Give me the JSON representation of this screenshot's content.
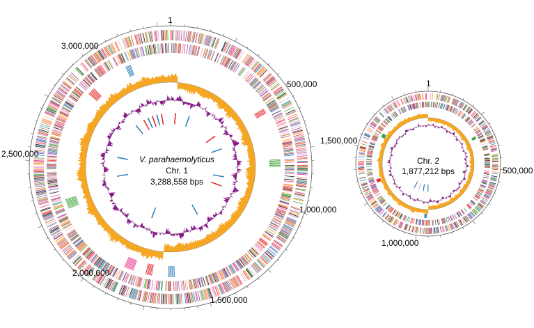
{
  "chromosome_1": {
    "species": "V. parahaemolyticus",
    "name": "Chr. 1",
    "size_label": "3,288,558 bps",
    "position_labels": [
      "1",
      "500,000",
      "1,000,000",
      "1,500,000",
      "2,000,000",
      "2,500,000",
      "3,000,000"
    ]
  },
  "chromosome_2": {
    "name": "Chr. 2",
    "size_label": "1,877,212 bps",
    "position_labels": [
      "1",
      "500,000",
      "1,000,000",
      "1,500,000"
    ]
  },
  "colors": {
    "gc_content": "#8b1a8b",
    "gc_skew": "#f5a623",
    "tick_palette": [
      "#000000",
      "#e31a1c",
      "#ff7f00",
      "#6a3d9a",
      "#33a02c",
      "#1f78b4",
      "#fb9a99",
      "#b15928",
      "#cab2d6",
      "#e7298a"
    ]
  },
  "tracks": [
    "CDS forward strand",
    "CDS reverse strand",
    "feature highlights",
    "GC content",
    "GC skew"
  ]
}
